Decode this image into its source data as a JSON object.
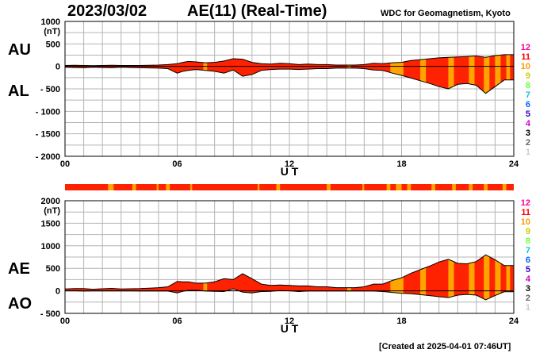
{
  "header": {
    "date": "2023/03/02",
    "title": "AE(11) (Real-Time)",
    "organization": "WDC for Geomagnetism, Kyoto"
  },
  "footer": {
    "created": "[Created at 2025-04-01 07:46UT]"
  },
  "colors": {
    "fill_main": "#ff2200",
    "fill_alt": "#ffa500",
    "outline": "#000000",
    "grid": "#b4b4b4"
  },
  "legend": {
    "values": [
      "12",
      "11",
      "10",
      "9",
      "8",
      "7",
      "6",
      "5",
      "4",
      "3",
      "2",
      "1"
    ],
    "colors": [
      "#ff0099",
      "#ff0000",
      "#ff9900",
      "#cccc00",
      "#66ff33",
      "#00cccc",
      "#0066ff",
      "#3300cc",
      "#cc00cc",
      "#000000",
      "#666666",
      "#cccccc"
    ]
  },
  "chart_data": [
    {
      "type": "area",
      "name": "AU/AL",
      "ylabel": "(nT)",
      "side_labels": [
        "AU",
        "AL"
      ],
      "xlabel": "U T",
      "xlim": [
        0,
        24
      ],
      "ylim": [
        -2000,
        1000
      ],
      "x_ticks": [
        "00",
        "06",
        "12",
        "18",
        "24"
      ],
      "y_ticks": [
        "1000",
        "500",
        "0",
        "- 500",
        "- 1000",
        "- 1500",
        "- 2000"
      ],
      "y_tick_values": [
        1000,
        500,
        0,
        -500,
        -1000,
        -1500,
        -2000
      ],
      "grid": true,
      "series": [
        {
          "name": "AU",
          "x": [
            0,
            0.5,
            1,
            1.5,
            2,
            2.5,
            3,
            3.5,
            4,
            4.5,
            5,
            5.5,
            6,
            6.3,
            6.6,
            7,
            7.5,
            8,
            8.5,
            9,
            9.5,
            10,
            10.5,
            11,
            11.5,
            12,
            12.5,
            13,
            13.5,
            14,
            14.5,
            15,
            15.5,
            16,
            16.5,
            17,
            17.5,
            18,
            18.5,
            19,
            19.5,
            20,
            20.5,
            21,
            21.5,
            22,
            22.5,
            23,
            23.5,
            24
          ],
          "values": [
            20,
            25,
            20,
            15,
            20,
            25,
            20,
            20,
            20,
            25,
            30,
            40,
            60,
            90,
            110,
            100,
            80,
            90,
            120,
            170,
            160,
            90,
            60,
            50,
            70,
            60,
            40,
            50,
            40,
            40,
            30,
            30,
            30,
            40,
            70,
            60,
            80,
            90,
            130,
            150,
            170,
            190,
            200,
            210,
            220,
            230,
            200,
            240,
            260,
            260
          ]
        },
        {
          "name": "AL",
          "x": [
            0,
            0.5,
            1,
            1.5,
            2,
            2.5,
            3,
            3.5,
            4,
            4.5,
            5,
            5.5,
            6,
            6.3,
            6.6,
            7,
            7.5,
            8,
            8.5,
            9,
            9.5,
            10,
            10.5,
            11,
            11.5,
            12,
            12.5,
            13,
            13.5,
            14,
            14.5,
            15,
            15.5,
            16,
            16.5,
            17,
            17.5,
            18,
            18.5,
            19,
            19.5,
            20,
            20.5,
            21,
            21.5,
            22,
            22.5,
            23,
            23.5,
            24
          ],
          "values": [
            -20,
            -25,
            -30,
            -20,
            -25,
            -30,
            -20,
            -25,
            -30,
            -35,
            -40,
            -50,
            -150,
            -110,
            -90,
            -70,
            -90,
            -110,
            -150,
            -80,
            -220,
            -180,
            -90,
            -70,
            -60,
            -60,
            -70,
            -60,
            -50,
            -50,
            -40,
            -40,
            -40,
            -50,
            -80,
            -90,
            -150,
            -200,
            -260,
            -320,
            -380,
            -450,
            -500,
            -400,
            -380,
            -420,
            -600,
            -450,
            -300,
            -300
          ]
        }
      ],
      "ut_bar_segments_hours": [
        [
          7.4,
          7.6
        ],
        [
          15.1,
          15.3
        ],
        [
          17.4,
          18.1
        ],
        [
          19.0,
          19.3
        ],
        [
          20.5,
          20.8
        ],
        [
          21.6,
          21.9
        ],
        [
          22.4,
          22.7
        ],
        [
          23.0,
          23.3
        ],
        [
          23.6,
          23.8
        ]
      ]
    },
    {
      "type": "area",
      "name": "AE/AO",
      "ylabel": "(nT)",
      "side_labels": [
        "AE",
        "AO"
      ],
      "xlabel": "U T",
      "xlim": [
        0,
        24
      ],
      "ylim": [
        -500,
        2000
      ],
      "x_ticks": [
        "00",
        "06",
        "12",
        "18",
        "24"
      ],
      "y_ticks": [
        "2000",
        "1500",
        "1000",
        "500",
        "0",
        "- 500"
      ],
      "y_tick_values": [
        2000,
        1500,
        1000,
        500,
        0,
        -500
      ],
      "grid": true,
      "series": [
        {
          "name": "AE",
          "x": [
            0,
            0.5,
            1,
            1.5,
            2,
            2.5,
            3,
            3.5,
            4,
            4.5,
            5,
            5.5,
            6,
            6.3,
            6.6,
            7,
            7.5,
            8,
            8.5,
            9,
            9.5,
            10,
            10.5,
            11,
            11.5,
            12,
            12.5,
            13,
            13.5,
            14,
            14.5,
            15,
            15.5,
            16,
            16.5,
            17,
            17.5,
            18,
            18.5,
            19,
            19.5,
            20,
            20.5,
            21,
            21.5,
            22,
            22.5,
            23,
            23.5,
            24
          ],
          "values": [
            40,
            50,
            50,
            35,
            45,
            55,
            40,
            45,
            50,
            60,
            70,
            90,
            210,
            200,
            200,
            170,
            170,
            200,
            270,
            250,
            380,
            270,
            150,
            120,
            130,
            120,
            110,
            110,
            90,
            90,
            70,
            70,
            70,
            90,
            150,
            150,
            230,
            290,
            390,
            470,
            550,
            640,
            700,
            610,
            600,
            650,
            800,
            690,
            560,
            560
          ]
        },
        {
          "name": "AO",
          "x": [
            0,
            0.5,
            1,
            1.5,
            2,
            2.5,
            3,
            3.5,
            4,
            4.5,
            5,
            5.5,
            6,
            6.3,
            6.6,
            7,
            7.5,
            8,
            8.5,
            9,
            9.5,
            10,
            10.5,
            11,
            11.5,
            12,
            12.5,
            13,
            13.5,
            14,
            14.5,
            15,
            15.5,
            16,
            16.5,
            17,
            17.5,
            18,
            18.5,
            19,
            19.5,
            20,
            20.5,
            21,
            21.5,
            22,
            22.5,
            23,
            23.5,
            24
          ],
          "values": [
            0,
            0,
            -5,
            -3,
            -3,
            -3,
            0,
            -3,
            -5,
            -5,
            -5,
            -5,
            -45,
            -10,
            10,
            15,
            -5,
            -10,
            -15,
            45,
            -30,
            -45,
            -15,
            -10,
            5,
            0,
            -15,
            -5,
            -5,
            -5,
            -5,
            -5,
            -5,
            -5,
            -5,
            -15,
            -35,
            -55,
            -65,
            -85,
            -105,
            -130,
            -150,
            -95,
            -80,
            -95,
            -200,
            -105,
            -20,
            -20
          ]
        }
      ],
      "ut_bar_segments_hours": [
        [
          7.4,
          7.6
        ],
        [
          15.1,
          15.3
        ],
        [
          17.4,
          18.1
        ],
        [
          19.0,
          19.3
        ],
        [
          20.5,
          20.8
        ],
        [
          21.6,
          21.9
        ],
        [
          22.4,
          22.7
        ],
        [
          23.0,
          23.3
        ],
        [
          23.6,
          23.8
        ]
      ]
    }
  ],
  "status_bar": {
    "orange_segments_hours": [
      [
        2.3,
        2.6
      ],
      [
        3.6,
        3.8
      ],
      [
        4.9,
        5.0
      ],
      [
        5.4,
        5.6
      ],
      [
        6.7,
        6.8
      ],
      [
        10.3,
        10.4
      ],
      [
        11.3,
        11.5
      ],
      [
        14.0,
        14.2
      ],
      [
        15.9,
        16.0
      ],
      [
        17.2,
        17.4
      ],
      [
        17.7,
        18.0
      ],
      [
        18.3,
        18.5
      ],
      [
        19.6,
        19.8
      ],
      [
        20.7,
        20.9
      ],
      [
        21.6,
        21.8
      ],
      [
        22.4,
        22.6
      ],
      [
        23.4,
        23.6
      ]
    ]
  }
}
